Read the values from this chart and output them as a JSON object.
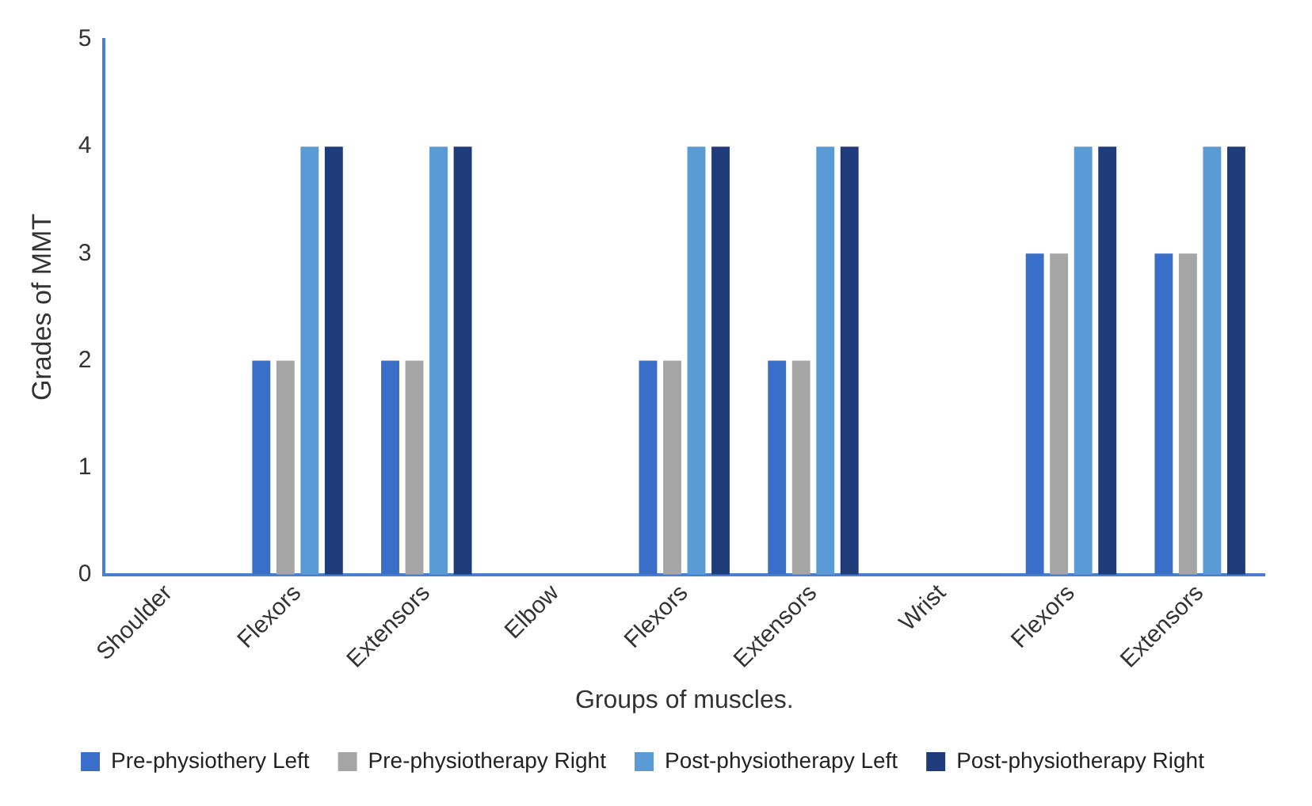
{
  "chart_data": {
    "type": "bar",
    "xlabel": "Groups of muscles.",
    "ylabel": "Grades of MMT",
    "categories": [
      "Shoulder",
      "Flexors",
      "Extensors",
      "Elbow",
      "Flexors",
      "Extensors",
      "Wrist",
      "Flexors",
      "Extensors"
    ],
    "ylim": [
      0,
      5
    ],
    "yticks": [
      0,
      1,
      2,
      3,
      4,
      5
    ],
    "grid": false,
    "legend": "bottom",
    "series": [
      {
        "name": "Pre-physiothery Left",
        "color": "#3a6fc9",
        "values": [
          null,
          2,
          2,
          null,
          2,
          2,
          null,
          3,
          3
        ]
      },
      {
        "name": "Pre-physiotherapy Right",
        "color": "#a5a5a5",
        "values": [
          null,
          2,
          2,
          null,
          2,
          2,
          null,
          3,
          3
        ]
      },
      {
        "name": "Post-physiotherapy Left",
        "color": "#5b9bd5",
        "values": [
          null,
          4,
          4,
          null,
          4,
          4,
          null,
          4,
          4
        ]
      },
      {
        "name": "Post-physiotherapy Right",
        "color": "#1f3c7a",
        "values": [
          null,
          4,
          4,
          null,
          4,
          4,
          null,
          4,
          4
        ]
      }
    ]
  }
}
